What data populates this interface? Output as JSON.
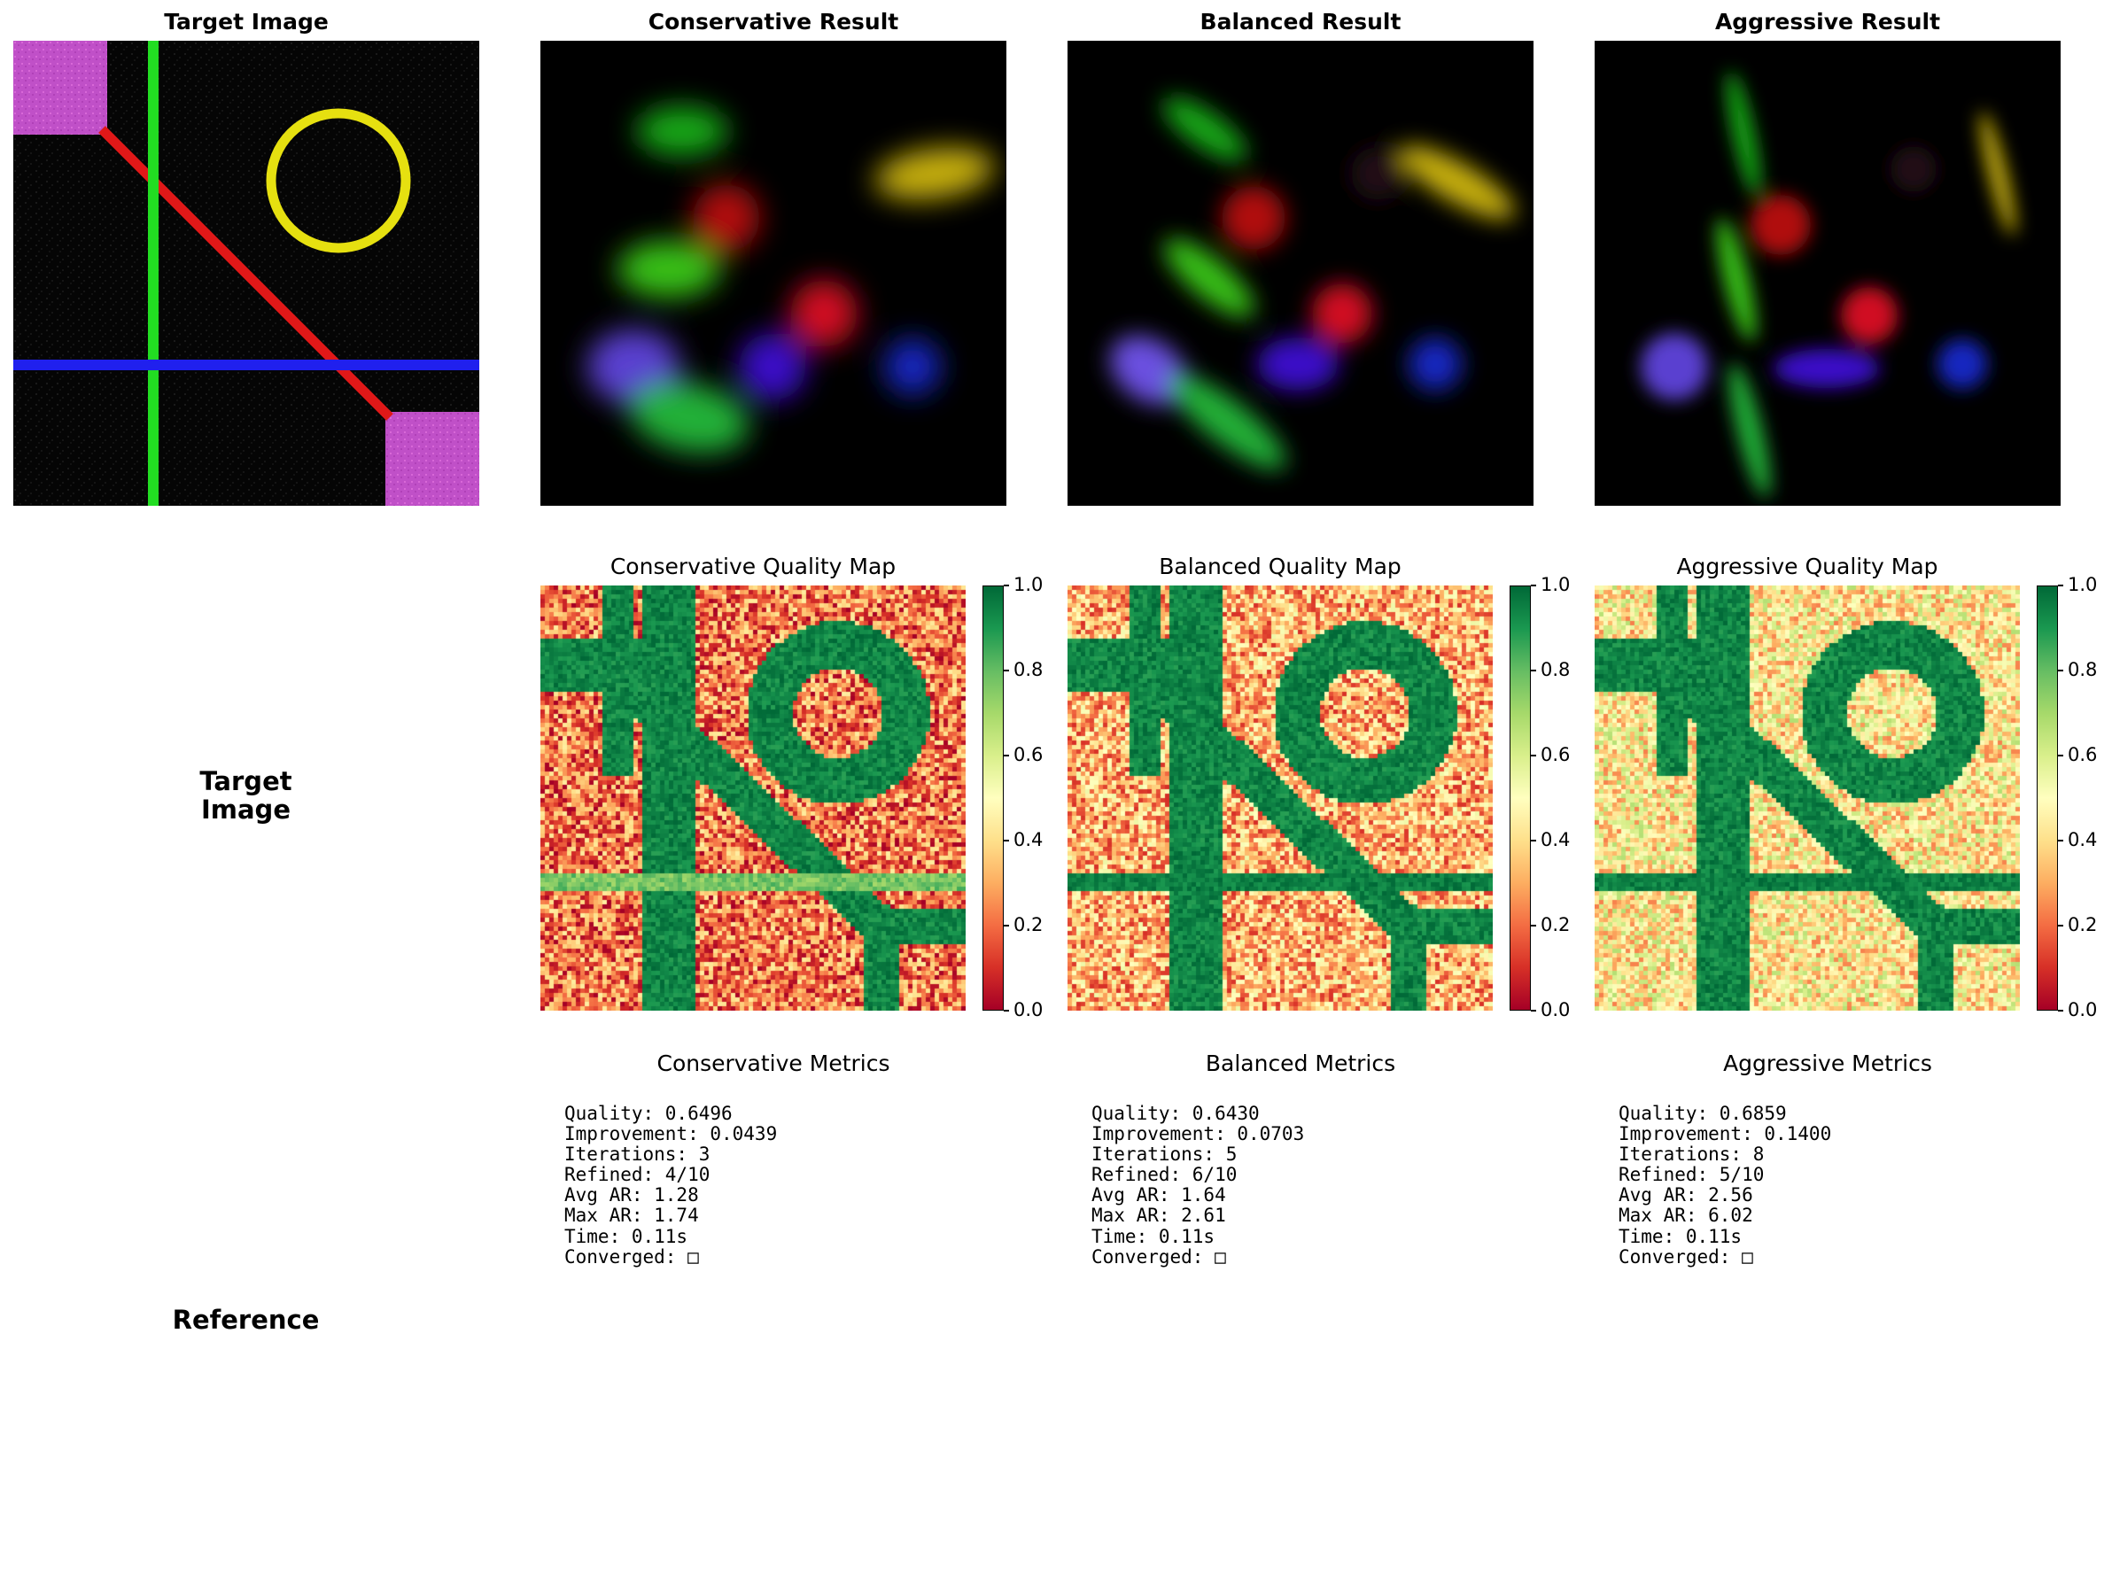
{
  "top_row": {
    "target_title": "Target Image",
    "results": [
      {
        "title": "Conservative Result"
      },
      {
        "title": "Balanced Result"
      },
      {
        "title": "Aggressive Result"
      }
    ]
  },
  "quality_maps": [
    {
      "title": "Conservative Quality Map"
    },
    {
      "title": "Balanced Quality Map"
    },
    {
      "title": "Aggressive Quality Map"
    }
  ],
  "colorbar": {
    "ticks": [
      "1.0",
      "0.8",
      "0.6",
      "0.4",
      "0.2",
      "0.0"
    ],
    "colormap": [
      "#a50026",
      "#d73027",
      "#f46d43",
      "#fdae61",
      "#fee08b",
      "#ffffbf",
      "#d9ef8b",
      "#a6d96a",
      "#66bd63",
      "#1a9850",
      "#006837"
    ]
  },
  "metrics": [
    {
      "title": "Conservative Metrics",
      "text": "Quality: 0.6496\nImprovement: 0.0439\nIterations: 3\nRefined: 4/10\nAvg AR: 1.28\nMax AR: 1.74\nTime: 0.11s\nConverged: □"
    },
    {
      "title": "Balanced Metrics",
      "text": "Quality: 0.6430\nImprovement: 0.0703\nIterations: 5\nRefined: 6/10\nAvg AR: 1.64\nMax AR: 2.61\nTime: 0.11s\nConverged: □"
    },
    {
      "title": "Aggressive Metrics",
      "text": "Quality: 0.6859\nImprovement: 0.1400\nIterations: 8\nRefined: 5/10\nAvg AR: 2.56\nMax AR: 6.02\nTime: 0.11s\nConverged: □"
    }
  ],
  "row_labels": {
    "target": "Target\nImage",
    "reference": "Reference"
  }
}
